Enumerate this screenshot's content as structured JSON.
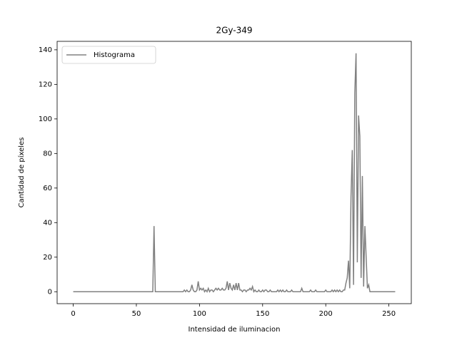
{
  "chart_data": {
    "type": "line",
    "title": "2Gy-349",
    "xlabel": "Intensidad de iluminacion",
    "ylabel": "Cantidad de píxeles",
    "x": [
      0,
      1,
      2,
      3,
      4,
      5,
      6,
      7,
      8,
      9,
      10,
      11,
      12,
      13,
      14,
      15,
      16,
      17,
      18,
      19,
      20,
      21,
      22,
      23,
      24,
      25,
      26,
      27,
      28,
      29,
      30,
      31,
      32,
      33,
      34,
      35,
      36,
      37,
      38,
      39,
      40,
      41,
      42,
      43,
      44,
      45,
      46,
      47,
      48,
      49,
      50,
      51,
      52,
      53,
      54,
      55,
      56,
      57,
      58,
      59,
      60,
      61,
      62,
      63,
      64,
      65,
      66,
      67,
      68,
      69,
      70,
      71,
      72,
      73,
      74,
      75,
      76,
      77,
      78,
      79,
      80,
      81,
      82,
      83,
      84,
      85,
      86,
      87,
      88,
      89,
      90,
      91,
      92,
      93,
      94,
      95,
      96,
      97,
      98,
      99,
      100,
      101,
      102,
      103,
      104,
      105,
      106,
      107,
      108,
      109,
      110,
      111,
      112,
      113,
      114,
      115,
      116,
      117,
      118,
      119,
      120,
      121,
      122,
      123,
      124,
      125,
      126,
      127,
      128,
      129,
      130,
      131,
      132,
      133,
      134,
      135,
      136,
      137,
      138,
      139,
      140,
      141,
      142,
      143,
      144,
      145,
      146,
      147,
      148,
      149,
      150,
      151,
      152,
      153,
      154,
      155,
      156,
      157,
      158,
      159,
      160,
      161,
      162,
      163,
      164,
      165,
      166,
      167,
      168,
      169,
      170,
      171,
      172,
      173,
      174,
      175,
      176,
      177,
      178,
      179,
      180,
      181,
      182,
      183,
      184,
      185,
      186,
      187,
      188,
      189,
      190,
      191,
      192,
      193,
      194,
      195,
      196,
      197,
      198,
      199,
      200,
      201,
      202,
      203,
      204,
      205,
      206,
      207,
      208,
      209,
      210,
      211,
      212,
      213,
      214,
      215,
      216,
      217,
      218,
      219,
      220,
      221,
      222,
      223,
      224,
      225,
      226,
      227,
      228,
      229,
      230,
      231,
      232,
      233,
      234,
      235,
      236,
      237,
      238,
      239,
      240,
      241,
      242,
      243,
      244,
      245,
      246,
      247,
      248,
      249,
      250,
      251,
      252,
      253,
      254,
      255
    ],
    "series": [
      {
        "name": "Histograma",
        "color": "#808080",
        "values": [
          0,
          0,
          0,
          0,
          0,
          0,
          0,
          0,
          0,
          0,
          0,
          0,
          0,
          0,
          0,
          0,
          0,
          0,
          0,
          0,
          0,
          0,
          0,
          0,
          0,
          0,
          0,
          0,
          0,
          0,
          0,
          0,
          0,
          0,
          0,
          0,
          0,
          0,
          0,
          0,
          0,
          0,
          0,
          0,
          0,
          0,
          0,
          0,
          0,
          0,
          0,
          0,
          0,
          0,
          0,
          0,
          0,
          0,
          0,
          0,
          0,
          0,
          0,
          0,
          38,
          0,
          0,
          0,
          0,
          0,
          0,
          0,
          0,
          0,
          0,
          0,
          0,
          0,
          0,
          0,
          0,
          0,
          0,
          0,
          0,
          0,
          0,
          0,
          1,
          0,
          1,
          0,
          0,
          1,
          4,
          1,
          0,
          0,
          1,
          6,
          1,
          2,
          1,
          2,
          0,
          1,
          0,
          2,
          0,
          1,
          1,
          0,
          1,
          2,
          1,
          2,
          1,
          1,
          2,
          1,
          1,
          2,
          6,
          1,
          5,
          2,
          1,
          4,
          1,
          5,
          1,
          5,
          1,
          1,
          0,
          1,
          1,
          0,
          1,
          1,
          2,
          1,
          3,
          0,
          1,
          0,
          0,
          1,
          0,
          0,
          1,
          0,
          1,
          1,
          0,
          0,
          1,
          0,
          0,
          0,
          0,
          0,
          1,
          0,
          1,
          0,
          1,
          0,
          0,
          1,
          0,
          0,
          0,
          1,
          0,
          0,
          0,
          0,
          0,
          0,
          0,
          2,
          0,
          0,
          0,
          0,
          0,
          0,
          1,
          0,
          0,
          0,
          1,
          0,
          0,
          0,
          0,
          0,
          0,
          0,
          1,
          0,
          0,
          0,
          0,
          1,
          0,
          1,
          0,
          1,
          0,
          1,
          0,
          0,
          1,
          1,
          5,
          8,
          18,
          2,
          55,
          82,
          4,
          115,
          138,
          17,
          102,
          90,
          8,
          67,
          3,
          38,
          20,
          2,
          4,
          0,
          0,
          0,
          0,
          0,
          0,
          0,
          0,
          0,
          0,
          0,
          0,
          0,
          0,
          0,
          0,
          0,
          0,
          0,
          0,
          0
        ]
      }
    ],
    "xlim": [
      -12.75,
      267.75
    ],
    "ylim": [
      -6.9,
      144.9
    ],
    "xticks": [
      0,
      50,
      100,
      150,
      200,
      250
    ],
    "yticks": [
      0,
      20,
      40,
      60,
      80,
      100,
      120,
      140
    ],
    "legend": "upper left"
  }
}
